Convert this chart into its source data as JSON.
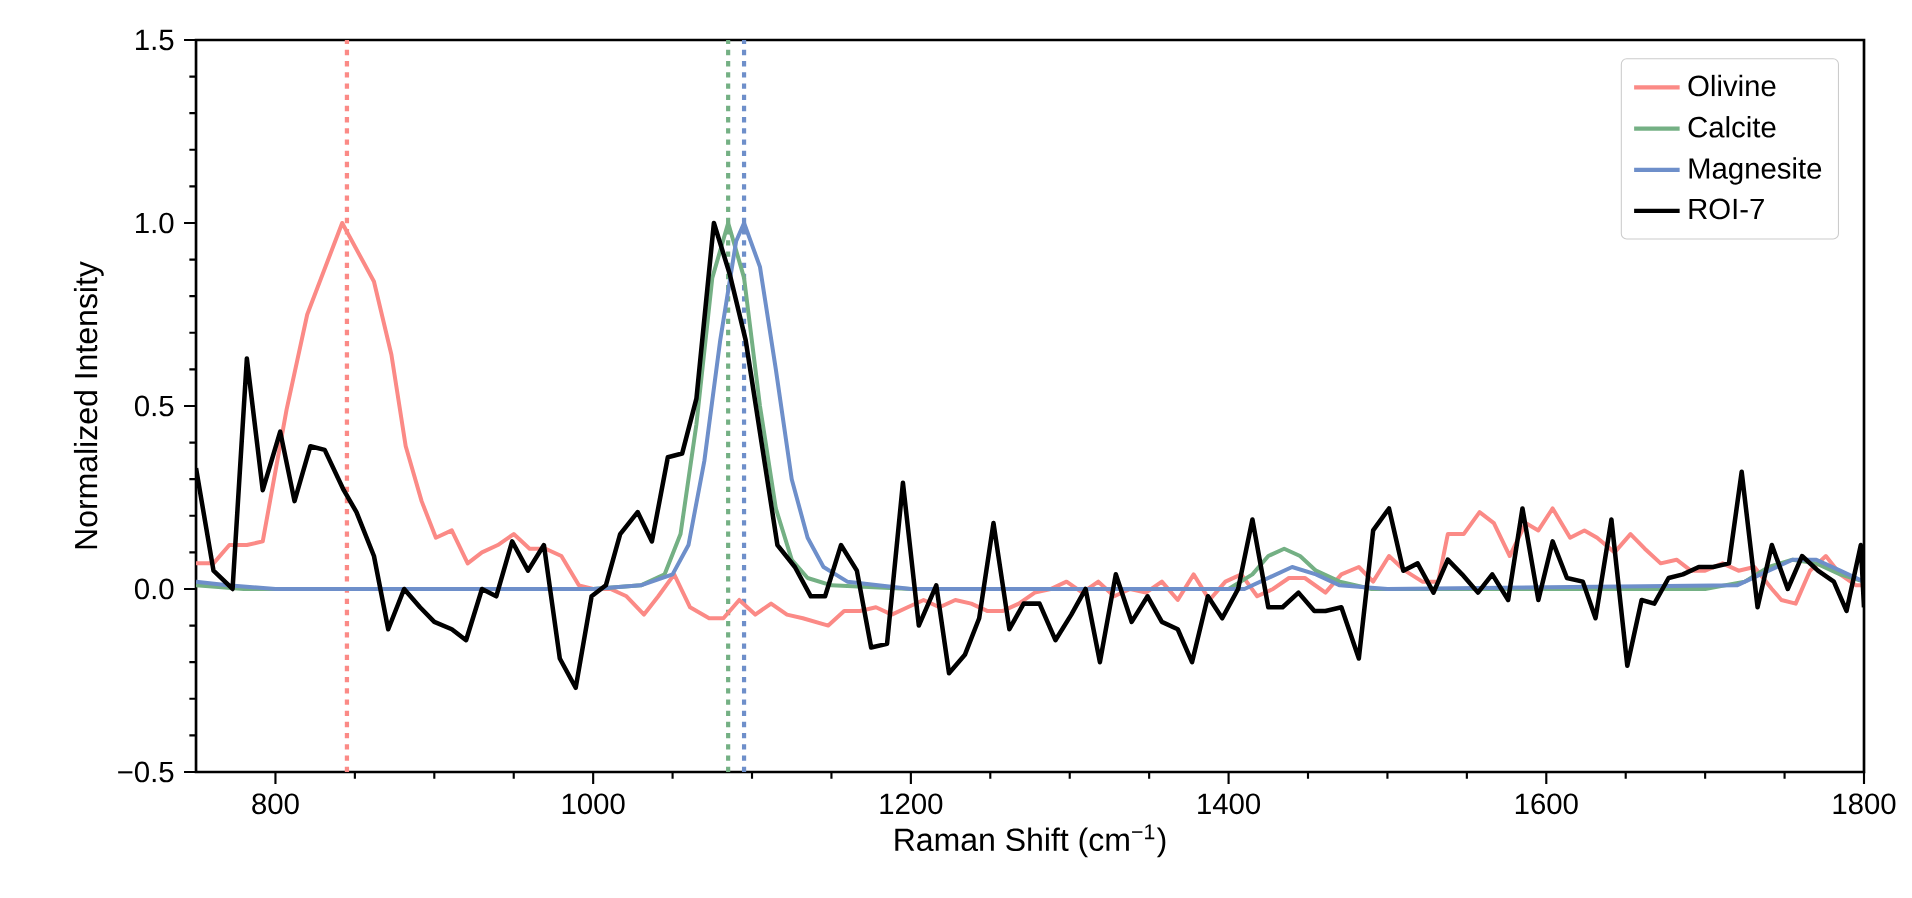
{
  "chart_data": {
    "type": "line",
    "xlabel": "Raman Shift (cm$^{−1}$)",
    "ylabel": "Normalized Intensity",
    "xlim": [
      750,
      1800
    ],
    "ylim": [
      -0.5,
      1.5
    ],
    "xticks": [
      800,
      1000,
      1200,
      1400,
      1600,
      1800
    ],
    "yticks": [
      {
        "value": -0.5,
        "label": "−0.5"
      },
      {
        "value": 0,
        "label": "0.0"
      },
      0.5,
      {
        "value": 1,
        "label": "1.0"
      },
      {
        "value": 1.5,
        "label": "1.5"
      }
    ],
    "grid": false,
    "legend": "top right",
    "marker": "none",
    "series": [
      {
        "name": "Olivine",
        "color": "#fb8a86",
        "x": [
          750,
          761,
          771,
          782,
          792,
          807,
          820,
          842,
          862,
          873,
          882,
          892,
          901,
          911,
          921,
          930,
          940,
          950,
          960,
          970,
          980,
          991,
          1000,
          1011,
          1021,
          1032,
          1041,
          1051,
          1061,
          1073,
          1082,
          1092,
          1102,
          1112,
          1122,
          1132,
          1148,
          1158,
          1168,
          1178,
          1188,
          1198,
          1208,
          1218,
          1228,
          1238,
          1248,
          1258,
          1268,
          1278,
          1288,
          1298,
          1308,
          1318,
          1328,
          1338,
          1348,
          1358,
          1368,
          1378,
          1388,
          1398,
          1408,
          1418,
          1428,
          1438,
          1448,
          1461,
          1471,
          1482,
          1491,
          1501,
          1511,
          1522,
          1532,
          1538,
          1548,
          1558,
          1567,
          1577,
          1587,
          1595,
          1604,
          1615,
          1624,
          1632,
          1643,
          1653,
          1662,
          1672,
          1682,
          1691,
          1700,
          1711,
          1721,
          1731,
          1742,
          1748,
          1757,
          1766,
          1776,
          1785,
          1795,
          1800
        ],
        "values": [
          0.07,
          0.07,
          0.12,
          0.12,
          0.13,
          0.49,
          0.75,
          1.0,
          0.84,
          0.64,
          0.39,
          0.24,
          0.14,
          0.16,
          0.07,
          0.1,
          0.12,
          0.15,
          0.11,
          0.11,
          0.09,
          0.01,
          0.0,
          0.0,
          -0.02,
          -0.07,
          -0.02,
          0.04,
          -0.05,
          -0.08,
          -0.08,
          -0.03,
          -0.07,
          -0.04,
          -0.07,
          -0.08,
          -0.1,
          -0.06,
          -0.06,
          -0.05,
          -0.07,
          -0.05,
          -0.03,
          -0.05,
          -0.03,
          -0.04,
          -0.06,
          -0.06,
          -0.04,
          -0.01,
          0.0,
          0.02,
          -0.01,
          0.02,
          -0.02,
          0.0,
          -0.01,
          0.02,
          -0.03,
          0.04,
          -0.03,
          0.02,
          0.04,
          -0.02,
          0.0,
          0.03,
          0.03,
          -0.01,
          0.04,
          0.06,
          0.02,
          0.09,
          0.05,
          0.02,
          0.02,
          0.15,
          0.15,
          0.21,
          0.18,
          0.09,
          0.18,
          0.16,
          0.22,
          0.14,
          0.16,
          0.14,
          0.1,
          0.15,
          0.11,
          0.07,
          0.08,
          0.05,
          0.05,
          0.07,
          0.05,
          0.06,
          0.0,
          -0.03,
          -0.04,
          0.05,
          0.09,
          0.04,
          0.01,
          0.01
        ]
      },
      {
        "name": "Calcite",
        "color": "#74b084",
        "x": [
          750,
          780,
          900,
          1000,
          1030,
          1045,
          1055,
          1065,
          1075,
          1085,
          1095,
          1105,
          1115,
          1125,
          1135,
          1150,
          1200,
          1400,
          1415,
          1425,
          1435,
          1445,
          1455,
          1470,
          1490,
          1700,
          1725,
          1740,
          1755,
          1770,
          1785,
          1800
        ],
        "values": [
          0.01,
          0.0,
          0.0,
          0.0,
          0.01,
          0.04,
          0.15,
          0.45,
          0.85,
          1.0,
          0.85,
          0.5,
          0.22,
          0.08,
          0.03,
          0.01,
          0.0,
          0.0,
          0.04,
          0.09,
          0.11,
          0.09,
          0.05,
          0.02,
          0.0,
          0.0,
          0.02,
          0.06,
          0.08,
          0.07,
          0.04,
          0.02
        ]
      },
      {
        "name": "Magnesite",
        "color": "#6e8fca",
        "x": [
          750,
          770,
          800,
          1000,
          1030,
          1050,
          1060,
          1070,
          1080,
          1090,
          1095,
          1105,
          1115,
          1125,
          1135,
          1145,
          1160,
          1200,
          1410,
          1425,
          1440,
          1455,
          1470,
          1500,
          1720,
          1740,
          1755,
          1770,
          1785,
          1800
        ],
        "values": [
          0.02,
          0.01,
          0.0,
          0.0,
          0.01,
          0.04,
          0.12,
          0.35,
          0.68,
          0.95,
          1.0,
          0.88,
          0.6,
          0.3,
          0.14,
          0.06,
          0.02,
          0.0,
          0.0,
          0.03,
          0.06,
          0.04,
          0.01,
          0.0,
          0.01,
          0.05,
          0.08,
          0.08,
          0.05,
          0.02
        ]
      },
      {
        "name": "ROI-7",
        "color": "#000000",
        "x": [
          750,
          761,
          773,
          782,
          792,
          803,
          812,
          822,
          831,
          843,
          851,
          862,
          871,
          881,
          891,
          900,
          911,
          920,
          930,
          939,
          949,
          959,
          969,
          979,
          989,
          999,
          1008,
          1017,
          1028,
          1037,
          1047,
          1056,
          1065,
          1076,
          1086,
          1096,
          1116,
          1127,
          1137,
          1146,
          1156,
          1166,
          1175,
          1185,
          1195,
          1205,
          1216,
          1224,
          1234,
          1243,
          1252,
          1262,
          1271,
          1281,
          1291,
          1301,
          1310,
          1319,
          1329,
          1339,
          1349,
          1358,
          1368,
          1377,
          1387,
          1396,
          1406,
          1415,
          1425,
          1434,
          1444,
          1454,
          1461,
          1471,
          1482,
          1491,
          1501,
          1510,
          1519,
          1529,
          1538,
          1547,
          1557,
          1566,
          1576,
          1585,
          1595,
          1604,
          1613,
          1623,
          1631,
          1641,
          1651,
          1660,
          1668,
          1677,
          1686,
          1696,
          1705,
          1715,
          1723,
          1733,
          1742,
          1752,
          1761,
          1771,
          1781,
          1789,
          1798,
          1800
        ],
        "values": [
          0.33,
          0.05,
          0.0,
          0.63,
          0.27,
          0.43,
          0.24,
          0.39,
          0.38,
          0.27,
          0.21,
          0.09,
          -0.11,
          0.0,
          -0.05,
          -0.09,
          -0.11,
          -0.14,
          0.0,
          -0.02,
          0.13,
          0.05,
          0.12,
          -0.19,
          -0.27,
          -0.02,
          0.01,
          0.15,
          0.21,
          0.13,
          0.36,
          0.37,
          0.52,
          1.0,
          0.86,
          0.68,
          0.12,
          0.06,
          -0.02,
          -0.02,
          0.12,
          0.05,
          -0.16,
          -0.15,
          0.29,
          -0.1,
          0.01,
          -0.23,
          -0.18,
          -0.08,
          0.18,
          -0.11,
          -0.04,
          -0.04,
          -0.14,
          -0.07,
          0.0,
          -0.2,
          0.04,
          -0.09,
          -0.02,
          -0.09,
          -0.11,
          -0.2,
          -0.02,
          -0.08,
          0.0,
          0.19,
          -0.05,
          -0.05,
          -0.01,
          -0.06,
          -0.06,
          -0.05,
          -0.19,
          0.16,
          0.22,
          0.05,
          0.07,
          -0.01,
          0.08,
          0.04,
          -0.01,
          0.04,
          -0.03,
          0.22,
          -0.03,
          0.13,
          0.03,
          0.02,
          -0.08,
          0.19,
          -0.21,
          -0.03,
          -0.04,
          0.03,
          0.04,
          0.06,
          0.06,
          0.07,
          0.32,
          -0.05,
          0.12,
          0.0,
          0.09,
          0.05,
          0.02,
          -0.06,
          0.12,
          -0.05
        ]
      }
    ],
    "ref_lines": [
      {
        "axis": "x",
        "value": 845,
        "color": "#fb8a86",
        "line_style": "dotted"
      },
      {
        "axis": "x",
        "value": 1085,
        "color": "#74b084",
        "line_style": "dotted"
      },
      {
        "axis": "x",
        "value": 1095,
        "color": "#6e8fca",
        "line_style": "dotted"
      }
    ]
  }
}
